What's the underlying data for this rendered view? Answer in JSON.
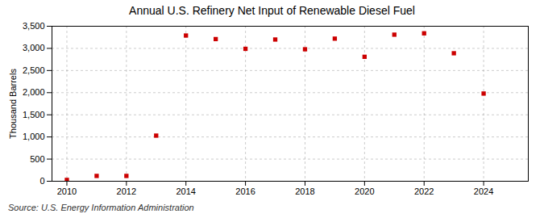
{
  "chart_data": {
    "type": "scatter",
    "title": "Annual U.S. Refinery Net Input of Renewable Diesel Fuel",
    "ylabel": "Thousand Barrels",
    "annotations": [
      "Source: U.S. Energy Information Administration"
    ],
    "x": [
      2010,
      2011,
      2012,
      2013,
      2014,
      2015,
      2016,
      2017,
      2018,
      2019,
      2020,
      2021,
      2022,
      2023,
      2024
    ],
    "values": [
      30,
      120,
      120,
      1030,
      3290,
      3210,
      2990,
      3200,
      2980,
      3220,
      2810,
      3310,
      3340,
      2890,
      1980
    ],
    "color": "#cc0000",
    "marker": "square",
    "xlim": [
      2009.5,
      2025.5
    ],
    "xticks": [
      2010,
      2012,
      2014,
      2016,
      2018,
      2020,
      2022,
      2024
    ],
    "ylim": [
      0,
      3500
    ],
    "yticks": [
      0,
      500,
      {
        "value": 1000,
        "label": "1,000"
      },
      {
        "value": 1500,
        "label": "1,500"
      },
      {
        "value": 2000,
        "label": "2,000"
      },
      {
        "value": 2500,
        "label": "2,500"
      },
      {
        "value": 3000,
        "label": "3,000"
      },
      {
        "value": 3500,
        "label": "3,500"
      }
    ],
    "grid": true
  }
}
